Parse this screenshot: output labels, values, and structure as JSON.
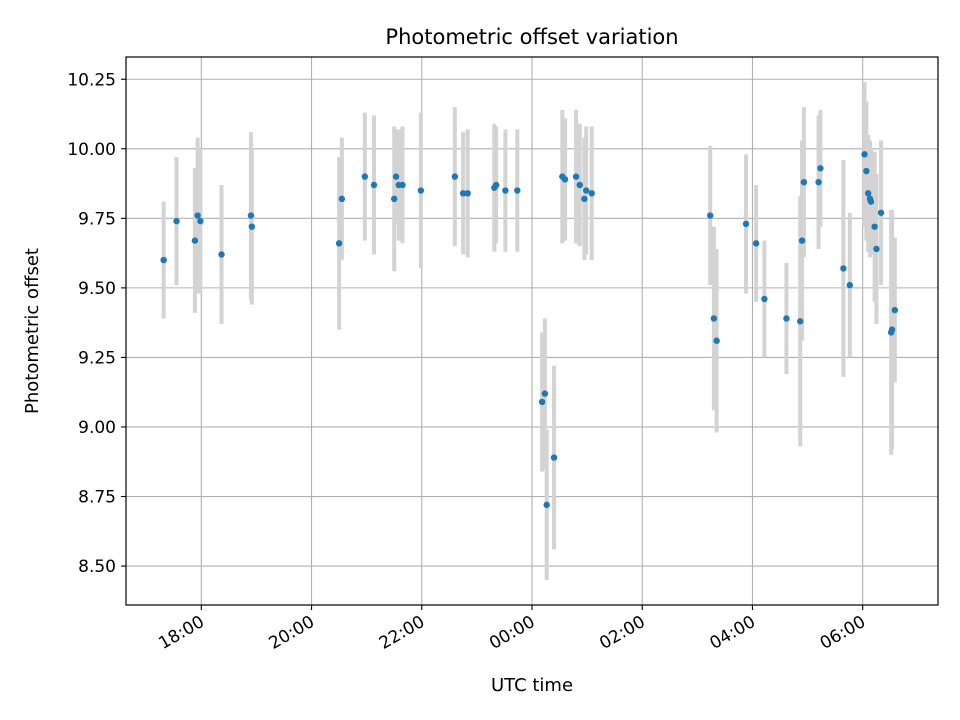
{
  "chart_data": {
    "type": "scatter",
    "title": "Photometric offset variation",
    "xlabel": "UTC time",
    "ylabel": "Photometric offset",
    "xlim": [
      "2024-01-01T16:38",
      "2024-01-02T07:22"
    ],
    "ylim": [
      8.36,
      10.33
    ],
    "grid": true,
    "x_ticks": [
      "2024-01-01T18:00",
      "2024-01-01T20:00",
      "2024-01-01T22:00",
      "2024-01-02T00:00",
      "2024-01-02T02:00",
      "2024-01-02T04:00",
      "2024-01-02T06:00"
    ],
    "x_tick_labels": [
      "18:00",
      "20:00",
      "22:00",
      "00:00",
      "02:00",
      "04:00",
      "06:00"
    ],
    "y_ticks": [
      8.5,
      8.75,
      9.0,
      9.25,
      9.5,
      9.75,
      10.0,
      10.25
    ],
    "y_tick_labels": [
      "8.50",
      "8.75",
      "9.00",
      "9.25",
      "9.50",
      "9.75",
      "10.00",
      "10.25"
    ],
    "colors": {
      "points": "#1f77b4",
      "errorbars": "#d3d3d3",
      "grid": "#b0b0b0"
    },
    "series": [
      {
        "points": [
          {
            "x": "2024-01-01T17:19",
            "y": 9.6,
            "err": 0.21
          },
          {
            "x": "2024-01-01T17:33",
            "y": 9.74,
            "err": 0.23
          },
          {
            "x": "2024-01-01T17:53",
            "y": 9.67,
            "err": 0.26
          },
          {
            "x": "2024-01-01T17:56",
            "y": 9.76,
            "err": 0.28
          },
          {
            "x": "2024-01-01T17:59",
            "y": 9.74,
            "err": 0.26
          },
          {
            "x": "2024-01-01T18:22",
            "y": 9.62,
            "err": 0.25
          },
          {
            "x": "2024-01-01T18:54",
            "y": 9.76,
            "err": 0.3
          },
          {
            "x": "2024-01-01T18:55",
            "y": 9.72,
            "err": 0.28
          },
          {
            "x": "2024-01-01T20:30",
            "y": 9.66,
            "err": 0.31
          },
          {
            "x": "2024-01-01T20:33",
            "y": 9.82,
            "err": 0.22
          },
          {
            "x": "2024-01-01T20:58",
            "y": 9.9,
            "err": 0.23
          },
          {
            "x": "2024-01-01T21:08",
            "y": 9.87,
            "err": 0.25
          },
          {
            "x": "2024-01-01T21:30",
            "y": 9.82,
            "err": 0.26
          },
          {
            "x": "2024-01-01T21:32",
            "y": 9.9,
            "err": 0.17
          },
          {
            "x": "2024-01-01T21:35",
            "y": 9.87,
            "err": 0.2
          },
          {
            "x": "2024-01-01T21:39",
            "y": 9.87,
            "err": 0.21
          },
          {
            "x": "2024-01-01T21:59",
            "y": 9.85,
            "err": 0.28
          },
          {
            "x": "2024-01-01T22:36",
            "y": 9.9,
            "err": 0.25
          },
          {
            "x": "2024-01-01T22:45",
            "y": 9.84,
            "err": 0.22
          },
          {
            "x": "2024-01-01T22:50",
            "y": 9.84,
            "err": 0.23
          },
          {
            "x": "2024-01-01T23:19",
            "y": 9.86,
            "err": 0.23
          },
          {
            "x": "2024-01-01T23:21",
            "y": 9.87,
            "err": 0.21
          },
          {
            "x": "2024-01-01T23:31",
            "y": 9.85,
            "err": 0.22
          },
          {
            "x": "2024-01-01T23:44",
            "y": 9.85,
            "err": 0.22
          },
          {
            "x": "2024-01-02T00:11",
            "y": 9.09,
            "err": 0.25
          },
          {
            "x": "2024-01-02T00:14",
            "y": 9.12,
            "err": 0.27
          },
          {
            "x": "2024-01-02T00:16",
            "y": 8.72,
            "err": 0.27
          },
          {
            "x": "2024-01-02T00:24",
            "y": 8.89,
            "err": 0.33
          },
          {
            "x": "2024-01-02T00:33",
            "y": 9.9,
            "err": 0.24
          },
          {
            "x": "2024-01-02T00:36",
            "y": 9.89,
            "err": 0.22
          },
          {
            "x": "2024-01-02T00:48",
            "y": 9.9,
            "err": 0.24
          },
          {
            "x": "2024-01-02T00:52",
            "y": 9.87,
            "err": 0.22
          },
          {
            "x": "2024-01-02T00:57",
            "y": 9.82,
            "err": 0.22
          },
          {
            "x": "2024-01-02T00:59",
            "y": 9.85,
            "err": 0.23
          },
          {
            "x": "2024-01-02T01:05",
            "y": 9.84,
            "err": 0.24
          },
          {
            "x": "2024-01-02T03:14",
            "y": 9.76,
            "err": 0.25
          },
          {
            "x": "2024-01-02T03:18",
            "y": 9.39,
            "err": 0.33
          },
          {
            "x": "2024-01-02T03:21",
            "y": 9.31,
            "err": 0.33
          },
          {
            "x": "2024-01-02T03:53",
            "y": 9.73,
            "err": 0.25
          },
          {
            "x": "2024-01-02T04:04",
            "y": 9.66,
            "err": 0.21
          },
          {
            "x": "2024-01-02T04:13",
            "y": 9.46,
            "err": 0.21
          },
          {
            "x": "2024-01-02T04:37",
            "y": 9.39,
            "err": 0.2
          },
          {
            "x": "2024-01-02T04:52",
            "y": 9.38,
            "err": 0.45
          },
          {
            "x": "2024-01-02T04:54",
            "y": 9.67,
            "err": 0.36
          },
          {
            "x": "2024-01-02T04:56",
            "y": 9.88,
            "err": 0.27
          },
          {
            "x": "2024-01-02T05:12",
            "y": 9.88,
            "err": 0.24
          },
          {
            "x": "2024-01-02T05:14",
            "y": 9.93,
            "err": 0.21
          },
          {
            "x": "2024-01-02T05:39",
            "y": 9.57,
            "err": 0.39
          },
          {
            "x": "2024-01-02T05:46",
            "y": 9.51,
            "err": 0.26
          },
          {
            "x": "2024-01-02T06:02",
            "y": 9.98,
            "err": 0.26
          },
          {
            "x": "2024-01-02T06:04",
            "y": 9.92,
            "err": 0.25
          },
          {
            "x": "2024-01-02T06:06",
            "y": 9.84,
            "err": 0.21
          },
          {
            "x": "2024-01-02T06:08",
            "y": 9.82,
            "err": 0.21
          },
          {
            "x": "2024-01-02T06:09",
            "y": 9.81,
            "err": 0.19
          },
          {
            "x": "2024-01-02T06:13",
            "y": 9.72,
            "err": 0.27
          },
          {
            "x": "2024-01-02T06:15",
            "y": 9.64,
            "err": 0.27
          },
          {
            "x": "2024-01-02T06:20",
            "y": 9.77,
            "err": 0.26
          },
          {
            "x": "2024-01-02T06:31",
            "y": 9.34,
            "err": 0.44
          },
          {
            "x": "2024-01-02T06:32",
            "y": 9.35,
            "err": 0.43
          },
          {
            "x": "2024-01-02T06:35",
            "y": 9.42,
            "err": 0.26
          }
        ]
      }
    ]
  }
}
